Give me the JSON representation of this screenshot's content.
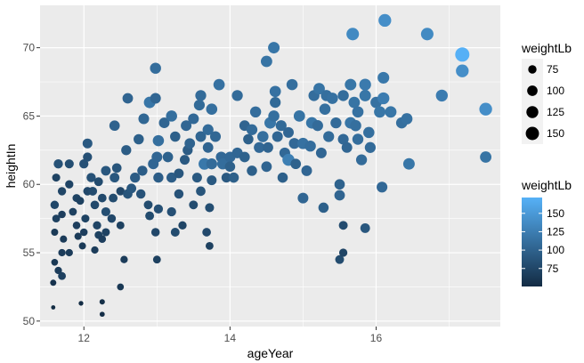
{
  "chart_data": {
    "type": "scatter",
    "title": "",
    "xlabel": "ageYear",
    "ylabel": "heightIn",
    "xlim": [
      11.4,
      17.7
    ],
    "ylim": [
      49.6,
      73.1
    ],
    "x_ticks": [
      12,
      14,
      16
    ],
    "y_ticks": [
      50,
      55,
      60,
      65,
      70
    ],
    "x_tick_labels": [
      "12",
      "14",
      "16"
    ],
    "y_tick_labels": [
      "50",
      "55",
      "60",
      "65",
      "70"
    ],
    "grid": true,
    "legend_position": "right",
    "size_legend": {
      "title": "weightLb",
      "breaks": [
        75,
        100,
        125,
        150
      ],
      "labels": [
        "75",
        "100",
        "125",
        "150"
      ]
    },
    "color_legend": {
      "title": "weightLb",
      "breaks": [
        75,
        100,
        125,
        150
      ],
      "labels": [
        "75",
        "100",
        "125",
        "150"
      ],
      "low_color": "#132B43",
      "high_color": "#56B1F7",
      "range": [
        50.5,
        171.5
      ]
    },
    "points": [
      [
        11.58,
        51.0,
        51
      ],
      [
        11.58,
        52.8,
        58
      ],
      [
        11.6,
        54.3,
        62
      ],
      [
        11.65,
        53.7,
        66
      ],
      [
        11.7,
        53.3,
        70
      ],
      [
        11.7,
        55.0,
        66
      ],
      [
        11.6,
        56.5,
        64
      ],
      [
        11.62,
        57.5,
        70
      ],
      [
        11.7,
        57.8,
        68
      ],
      [
        11.72,
        56.0,
        65
      ],
      [
        11.8,
        55.0,
        66
      ],
      [
        11.6,
        58.5,
        76
      ],
      [
        11.7,
        59.5,
        75
      ],
      [
        11.65,
        61.5,
        85
      ],
      [
        11.8,
        61.5,
        82
      ],
      [
        11.62,
        60.5,
        72
      ],
      [
        11.8,
        60.0,
        74
      ],
      [
        11.9,
        59.0,
        72
      ],
      [
        11.85,
        58.0,
        70
      ],
      [
        11.9,
        57.0,
        68
      ],
      [
        11.92,
        56.2,
        65
      ],
      [
        11.98,
        55.5,
        64
      ],
      [
        12.0,
        56.5,
        68
      ],
      [
        12.02,
        57.5,
        72
      ],
      [
        11.95,
        58.8,
        70
      ],
      [
        12.05,
        59.5,
        77
      ],
      [
        12.0,
        61.5,
        84
      ],
      [
        12.05,
        63.0,
        92
      ],
      [
        12.05,
        62.0,
        84
      ],
      [
        12.1,
        60.5,
        85
      ],
      [
        12.12,
        59.5,
        80
      ],
      [
        12.15,
        58.5,
        78
      ],
      [
        12.18,
        57.0,
        74
      ],
      [
        12.2,
        56.3,
        70
      ],
      [
        12.25,
        56.0,
        68
      ],
      [
        12.3,
        56.5,
        72
      ],
      [
        12.15,
        55.2,
        66
      ],
      [
        12.2,
        60.2,
        80
      ],
      [
        12.3,
        61.0,
        90
      ],
      [
        12.25,
        59.0,
        78
      ],
      [
        12.3,
        58.0,
        82
      ],
      [
        12.38,
        57.5,
        76
      ],
      [
        12.4,
        59.0,
        80
      ],
      [
        12.42,
        60.5,
        90
      ],
      [
        12.45,
        61.2,
        88
      ],
      [
        12.5,
        59.5,
        76
      ],
      [
        12.5,
        57.0,
        70
      ],
      [
        12.55,
        54.5,
        66
      ],
      [
        12.5,
        52.5,
        62
      ],
      [
        12.25,
        51.4,
        54
      ],
      [
        12.25,
        50.5,
        53
      ],
      [
        11.96,
        51.3,
        52
      ],
      [
        12.42,
        64.3,
        100
      ],
      [
        12.6,
        66.3,
        102
      ],
      [
        12.58,
        62.5,
        95
      ],
      [
        12.6,
        59.3,
        88
      ],
      [
        12.65,
        59.7,
        90
      ],
      [
        12.7,
        60.5,
        95
      ],
      [
        12.78,
        59.3,
        86
      ],
      [
        12.8,
        61.0,
        96
      ],
      [
        12.75,
        63.3,
        98
      ],
      [
        12.82,
        64.8,
        105
      ],
      [
        12.9,
        66.0,
        118
      ],
      [
        12.95,
        61.5,
        104
      ],
      [
        12.88,
        58.5,
        80
      ],
      [
        12.9,
        57.7,
        80
      ],
      [
        12.98,
        56.5,
        76
      ],
      [
        13.0,
        54.5,
        70
      ],
      [
        13.02,
        58.2,
        84
      ],
      [
        13.02,
        60.5,
        96
      ],
      [
        13.0,
        62.0,
        104
      ],
      [
        13.02,
        63.2,
        112
      ],
      [
        12.98,
        66.3,
        104
      ],
      [
        12.98,
        68.5,
        110
      ],
      [
        13.1,
        64.5,
        103
      ],
      [
        13.15,
        62.0,
        100
      ],
      [
        13.2,
        60.5,
        96
      ],
      [
        13.2,
        65.0,
        112
      ],
      [
        13.25,
        63.5,
        98
      ],
      [
        13.2,
        58.0,
        84
      ],
      [
        13.25,
        56.5,
        80
      ],
      [
        13.3,
        59.3,
        86
      ],
      [
        13.35,
        57.0,
        74
      ],
      [
        13.3,
        60.8,
        90
      ],
      [
        13.38,
        61.8,
        92
      ],
      [
        13.42,
        62.5,
        95
      ],
      [
        13.4,
        64.3,
        104
      ],
      [
        13.45,
        63.0,
        101
      ],
      [
        13.5,
        64.8,
        106
      ],
      [
        13.5,
        58.5,
        80
      ],
      [
        13.55,
        60.5,
        92
      ],
      [
        13.6,
        59.5,
        88
      ],
      [
        13.6,
        63.5,
        103
      ],
      [
        13.58,
        65.8,
        107
      ],
      [
        13.6,
        66.5,
        108
      ],
      [
        13.65,
        61.5,
        120
      ],
      [
        13.68,
        56.5,
        78
      ],
      [
        13.72,
        55.5,
        70
      ],
      [
        13.72,
        58.3,
        82
      ],
      [
        13.75,
        60.3,
        92
      ],
      [
        13.7,
        64.0,
        108
      ],
      [
        13.75,
        65.5,
        112
      ],
      [
        13.7,
        62.7,
        102
      ],
      [
        13.75,
        61.5,
        108
      ],
      [
        13.8,
        63.5,
        105
      ],
      [
        13.85,
        67.3,
        114
      ],
      [
        13.88,
        62.0,
        106
      ],
      [
        13.9,
        61.5,
        110
      ],
      [
        13.95,
        60.5,
        92
      ],
      [
        14.0,
        62.0,
        106
      ],
      [
        14.0,
        61.3,
        99
      ],
      [
        14.05,
        60.5,
        98
      ],
      [
        14.1,
        62.3,
        104
      ],
      [
        14.1,
        66.5,
        108
      ],
      [
        14.2,
        64.3,
        102
      ],
      [
        14.2,
        62.0,
        100
      ],
      [
        14.25,
        63.3,
        98
      ],
      [
        14.3,
        61.0,
        98
      ],
      [
        14.3,
        64.0,
        108
      ],
      [
        14.35,
        65.3,
        110
      ],
      [
        14.4,
        62.7,
        106
      ],
      [
        14.45,
        63.5,
        112
      ],
      [
        14.5,
        61.3,
        102
      ],
      [
        14.5,
        69.0,
        116
      ],
      [
        14.52,
        62.7,
        102
      ],
      [
        14.55,
        64.5,
        118
      ],
      [
        14.6,
        65.0,
        112
      ],
      [
        14.6,
        70.0,
        118
      ],
      [
        14.62,
        66.0,
        107
      ],
      [
        14.65,
        63.5,
        104
      ],
      [
        14.62,
        66.8,
        114
      ],
      [
        14.7,
        64.3,
        107
      ],
      [
        14.72,
        60.5,
        98
      ],
      [
        14.75,
        62.3,
        106
      ],
      [
        14.8,
        61.8,
        126
      ],
      [
        14.8,
        63.8,
        104
      ],
      [
        14.85,
        67.3,
        112
      ],
      [
        14.88,
        63.0,
        106
      ],
      [
        14.9,
        61.5,
        100
      ],
      [
        14.95,
        65.0,
        116
      ],
      [
        15.0,
        63.0,
        114
      ],
      [
        15.0,
        59.0,
        104
      ],
      [
        15.05,
        61.0,
        104
      ],
      [
        15.1,
        62.8,
        110
      ],
      [
        15.12,
        64.5,
        118
      ],
      [
        15.15,
        66.5,
        110
      ],
      [
        15.2,
        64.3,
        108
      ],
      [
        15.22,
        67.0,
        116
      ],
      [
        15.25,
        62.3,
        104
      ],
      [
        15.28,
        58.3,
        98
      ],
      [
        15.3,
        65.5,
        112
      ],
      [
        15.32,
        66.5,
        112
      ],
      [
        15.35,
        63.5,
        108
      ],
      [
        15.4,
        66.3,
        114
      ],
      [
        15.45,
        64.5,
        108
      ],
      [
        15.5,
        59.2,
        102
      ],
      [
        15.5,
        60.0,
        100
      ],
      [
        15.55,
        63.3,
        106
      ],
      [
        15.55,
        66.5,
        110
      ],
      [
        15.6,
        62.7,
        104
      ],
      [
        15.65,
        64.5,
        118
      ],
      [
        15.65,
        67.3,
        118
      ],
      [
        15.68,
        71.0,
        136
      ],
      [
        15.7,
        66.0,
        116
      ],
      [
        15.75,
        65.3,
        114
      ],
      [
        15.72,
        64.3,
        112
      ],
      [
        15.75,
        63.3,
        110
      ],
      [
        15.8,
        61.8,
        108
      ],
      [
        15.85,
        66.5,
        118
      ],
      [
        15.85,
        67.3,
        122
      ],
      [
        15.9,
        63.8,
        112
      ],
      [
        15.92,
        62.7,
        108
      ],
      [
        16.0,
        66.0,
        114
      ],
      [
        16.05,
        65.3,
        118
      ],
      [
        16.1,
        66.3,
        124
      ],
      [
        16.1,
        67.8,
        120
      ],
      [
        16.12,
        72.0,
        140
      ],
      [
        16.08,
        59.8,
        106
      ],
      [
        16.2,
        65.3,
        118
      ],
      [
        16.35,
        64.5,
        112
      ],
      [
        16.42,
        64.8,
        114
      ],
      [
        16.45,
        61.5,
        118
      ],
      [
        16.7,
        71.0,
        136
      ],
      [
        16.9,
        66.5,
        124
      ],
      [
        17.18,
        69.5,
        171
      ],
      [
        17.18,
        68.3,
        140
      ],
      [
        17.5,
        65.5,
        140
      ],
      [
        17.5,
        62.0,
        116
      ],
      [
        15.5,
        54.5,
        80
      ],
      [
        15.55,
        55.0,
        74
      ],
      [
        15.85,
        56.8,
        90
      ],
      [
        15.55,
        57.0,
        80
      ]
    ]
  }
}
